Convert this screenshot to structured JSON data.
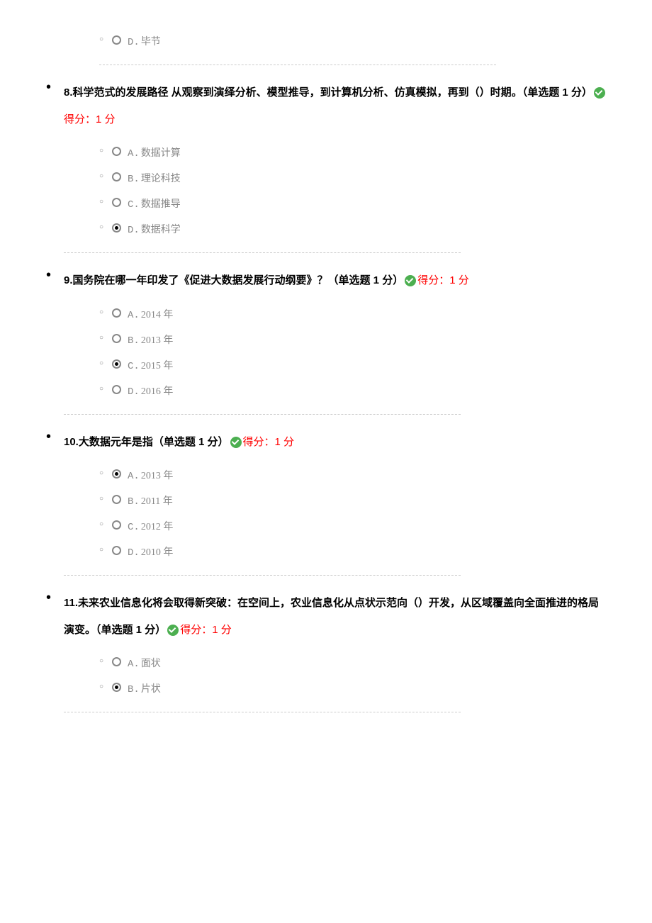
{
  "questions": [
    {
      "number": "",
      "text": "",
      "suffix": "",
      "score_label": "",
      "options": [
        {
          "label": "D.",
          "text": "毕节",
          "selected": false
        }
      ],
      "partial": true
    },
    {
      "number": "8.",
      "text": "科学范式的发展路径 从观察到演绎分析、模型推导，到计算机分析、仿真模拟，再到（）时期。（单选题 1 分）",
      "score_label": "得分：1 分",
      "options": [
        {
          "label": "A.",
          "text": "数据计算",
          "selected": false
        },
        {
          "label": "B.",
          "text": "理论科技",
          "selected": false
        },
        {
          "label": "C.",
          "text": "数据推导",
          "selected": false
        },
        {
          "label": "D.",
          "text": "数据科学",
          "selected": true
        }
      ],
      "partial": false
    },
    {
      "number": "9.",
      "text": "国务院在哪一年印发了《促进大数据发展行动纲要》？（单选题 1 分）",
      "score_label": "得分：1 分",
      "options": [
        {
          "label": "A.",
          "text": "2014 年",
          "selected": false
        },
        {
          "label": "B.",
          "text": "2013 年",
          "selected": false
        },
        {
          "label": "C.",
          "text": "2015 年",
          "selected": true
        },
        {
          "label": "D.",
          "text": "2016 年",
          "selected": false
        }
      ],
      "partial": false
    },
    {
      "number": "10.",
      "text": "大数据元年是指（单选题 1 分）",
      "score_label": "得分：1 分",
      "options": [
        {
          "label": "A.",
          "text": "2013 年",
          "selected": true
        },
        {
          "label": "B.",
          "text": "2011 年",
          "selected": false
        },
        {
          "label": "C.",
          "text": "2012 年",
          "selected": false
        },
        {
          "label": "D.",
          "text": "2010 年",
          "selected": false
        }
      ],
      "partial": false
    },
    {
      "number": "11.",
      "text": "未来农业信息化将会取得新突破：在空间上，农业信息化从点状示范向（）开发，从区域覆盖向全面推进的格局演变。（单选题 1 分）",
      "score_label": "得分：1 分",
      "options": [
        {
          "label": "A.",
          "text": "面状",
          "selected": false
        },
        {
          "label": "B.",
          "text": "片状",
          "selected": true
        }
      ],
      "partial": false,
      "trailing_partial": true
    }
  ],
  "colors": {
    "text_primary": "#000000",
    "text_option": "#888888",
    "score": "#ff0000",
    "check_bg": "#4caf50",
    "separator": "#cccccc",
    "background": "#ffffff"
  },
  "typography": {
    "question_fontsize": 15,
    "option_fontsize": 14,
    "question_weight": "bold",
    "line_height": 2.5
  }
}
